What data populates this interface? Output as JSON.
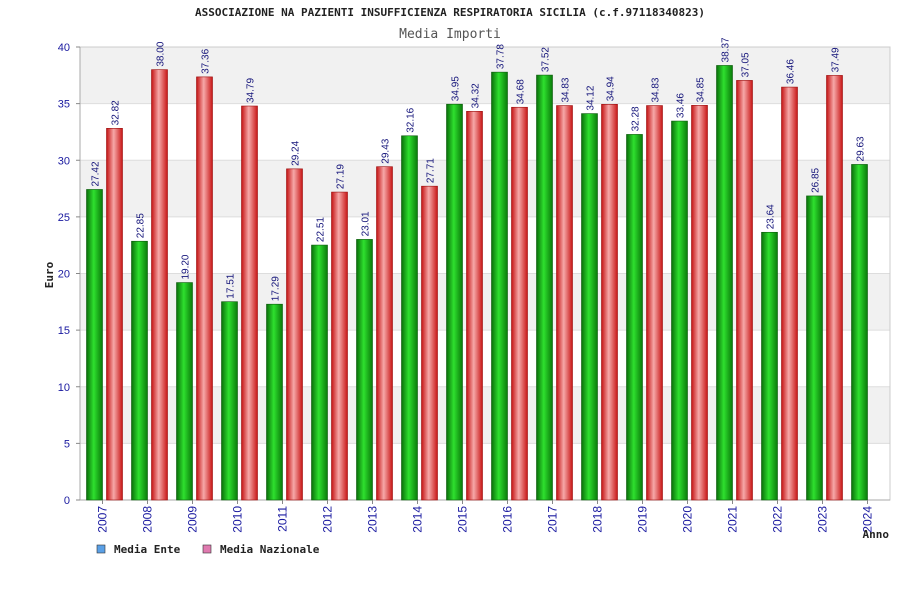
{
  "chart_data": {
    "type": "bar",
    "title": "ASSOCIAZIONE NA PAZIENTI INSUFFICIENZA RESPIRATORIA SICILIA (c.f.97118340823)",
    "subtitle": "Media Importi",
    "xlabel": "Anno",
    "ylabel": "Euro",
    "ylim": [
      0,
      40
    ],
    "yticks": [
      0,
      5,
      10,
      15,
      20,
      25,
      30,
      35,
      40
    ],
    "categories": [
      "2007",
      "2008",
      "2009",
      "2010",
      "2011",
      "2012",
      "2013",
      "2014",
      "2015",
      "2016",
      "2017",
      "2018",
      "2019",
      "2020",
      "2021",
      "2022",
      "2023",
      "2024"
    ],
    "series": [
      {
        "name": "Media Ente",
        "values": [
          27.42,
          22.85,
          19.2,
          17.51,
          17.29,
          22.51,
          23.01,
          32.16,
          34.95,
          37.78,
          37.52,
          34.12,
          32.28,
          33.46,
          38.37,
          23.64,
          26.85,
          29.63
        ],
        "labels": [
          "27.42",
          "22.85",
          "19.20",
          "17.51",
          "17.29",
          "22.51",
          "23.01",
          "32.16",
          "34.95",
          "37.78",
          "37.52",
          "34.12",
          "32.28",
          "33.46",
          "38.37",
          "23.64",
          "26.85",
          "29.63"
        ]
      },
      {
        "name": "Media Nazionale",
        "values": [
          32.82,
          38.0,
          37.36,
          34.79,
          29.24,
          27.19,
          29.43,
          27.71,
          34.32,
          34.68,
          34.83,
          34.94,
          34.83,
          34.85,
          37.05,
          36.46,
          37.49,
          null
        ],
        "labels": [
          "32.82",
          "38.00",
          "37.36",
          "34.79",
          "29.24",
          "27.19",
          "29.43",
          "27.71",
          "34.32",
          "34.68",
          "34.83",
          "34.94",
          "34.83",
          "34.85",
          "37.05",
          "36.46",
          "37.49",
          ""
        ]
      }
    ],
    "legend_position": "bottom-left",
    "grid": true
  },
  "colors": {
    "ente": "#10b010",
    "nazionale": "#e82a2a",
    "legend_ente": "#5aa0e6",
    "legend_nazionale": "#e07ab0",
    "band": "#f1f1f1",
    "grid": "#dddddd"
  }
}
